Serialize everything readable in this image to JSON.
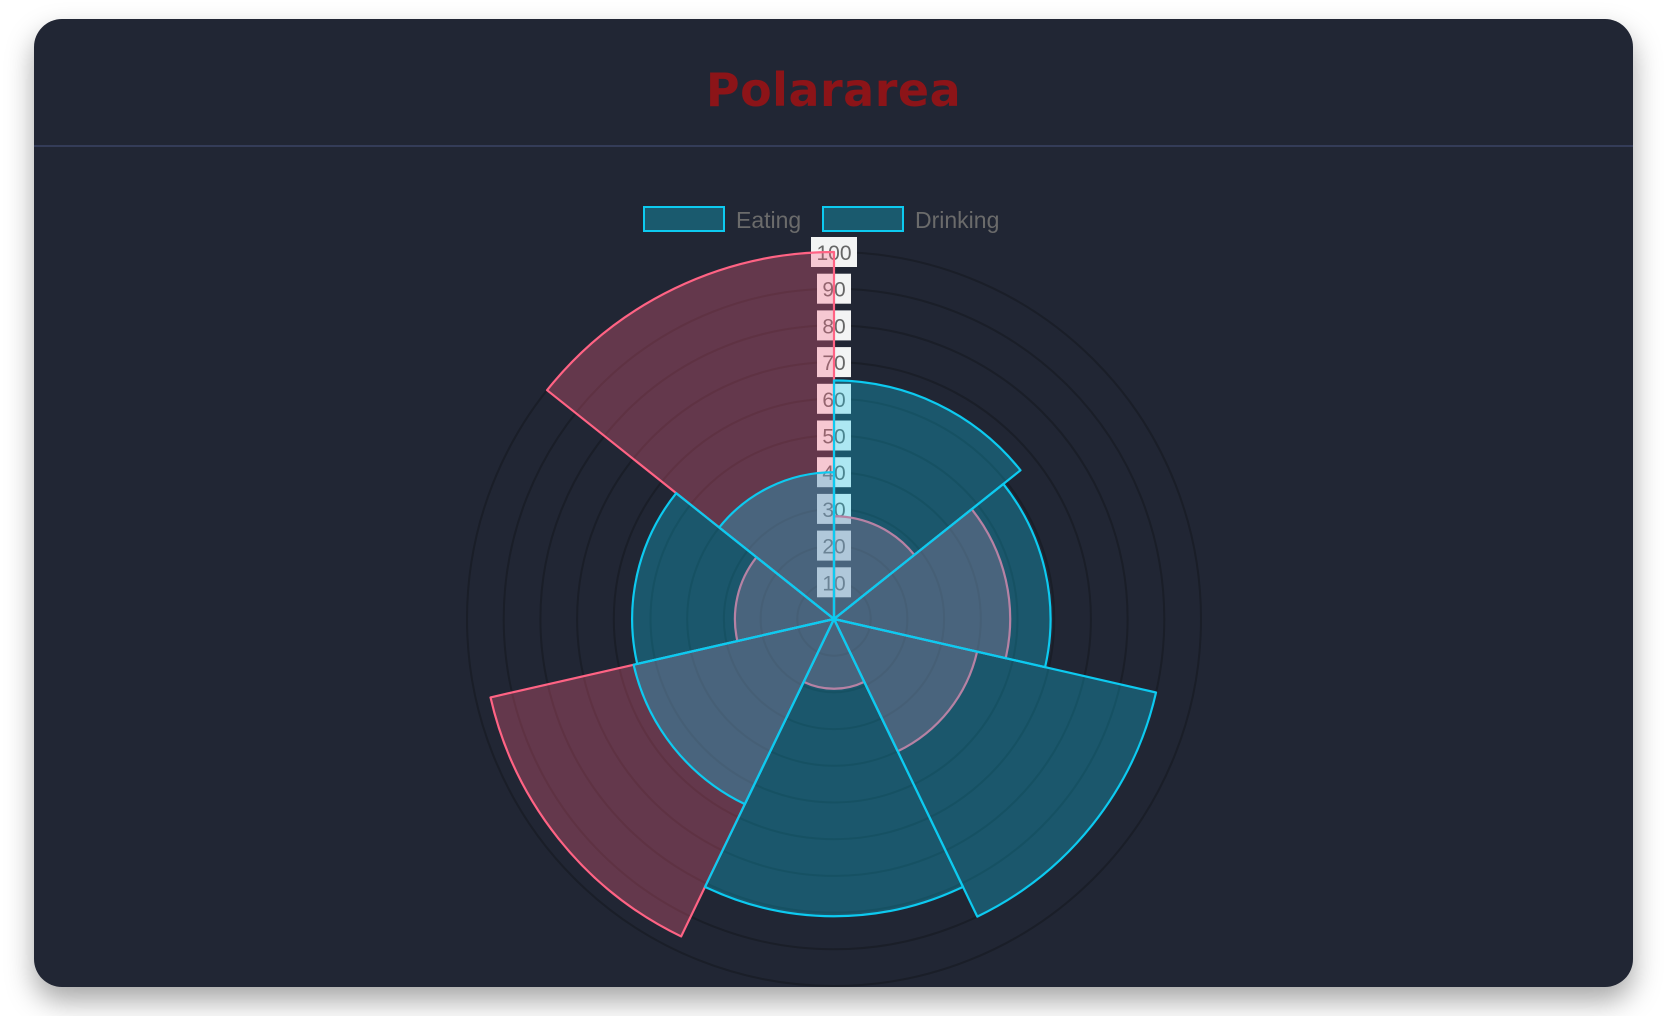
{
  "header": {
    "title": "Polararea"
  },
  "chart_data": {
    "type": "polarArea",
    "title": "Polararea",
    "legend_position": "top",
    "scale": {
      "min": 0,
      "max": 100,
      "step": 10,
      "ticks": [
        "10",
        "20",
        "30",
        "40",
        "50",
        "60",
        "70",
        "80",
        "90",
        "100"
      ]
    },
    "grid": true,
    "segments": 7,
    "series": [
      {
        "name": "Eating",
        "values": [
          65,
          59,
          90,
          81,
          56,
          55,
          40
        ],
        "border": "#0dcaf0",
        "fill": "rgba(13,202,240,0.3)"
      },
      {
        "name": "Drinking",
        "values": [
          28,
          48,
          40,
          19,
          96,
          27,
          100
        ],
        "border": "#ff6384",
        "fill": "rgba(255,99,132,0.3)"
      }
    ],
    "legend_colors": {
      "box_fill": "#1a5a6e",
      "box_border": "#0dcaf0"
    }
  },
  "colors": {
    "background": "#212634",
    "title": "#8c1418",
    "divider": "#343c58",
    "grid": "#1a1e28"
  }
}
